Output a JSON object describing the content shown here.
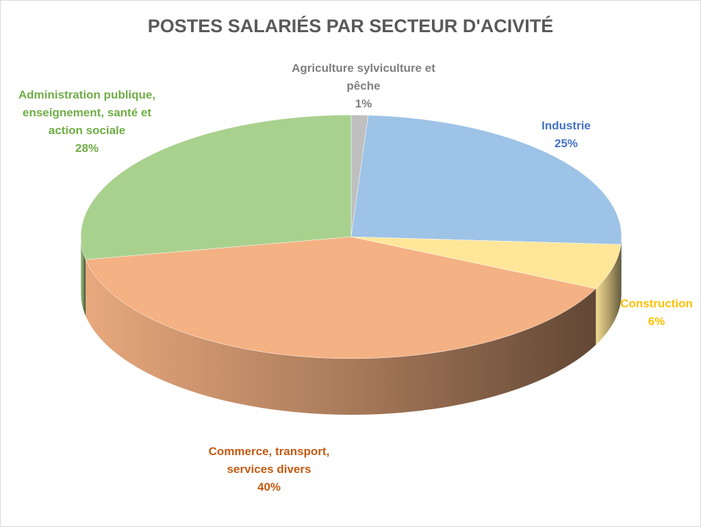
{
  "chart_data": {
    "type": "pie",
    "title": "POSTES SALARIÉS PAR SECTEUR D'ACIVITÉ",
    "categories": [
      "Agriculture sylviculture et pêche",
      "Industrie",
      "Construction",
      "Commerce, transport, services divers",
      "Administration publique, enseignement, santé et action sociale"
    ],
    "values": [
      1,
      25,
      6,
      40,
      28
    ],
    "value_labels": [
      "1%",
      "25%",
      "6%",
      "40%",
      "28%"
    ],
    "colors": [
      "#bfbfbf",
      "#9dc3e6",
      "#ffe699",
      "#f4b183",
      "#a9d18e"
    ],
    "label_colors": [
      "#7f7f7f",
      "#4472c4",
      "#ffc000",
      "#c55a11",
      "#70ad47"
    ]
  }
}
